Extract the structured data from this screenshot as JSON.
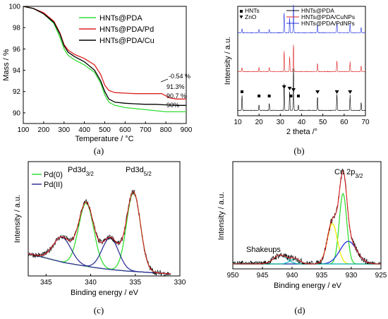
{
  "chart_data": [
    {
      "id": "a",
      "type": "line",
      "panel_label": "(a)",
      "xlabel": "Temperature / °C",
      "ylabel": "Mass / %",
      "xlim": [
        100,
        900
      ],
      "ylim": [
        89,
        100
      ],
      "xticks": [
        100,
        200,
        300,
        400,
        500,
        600,
        700,
        800,
        900
      ],
      "yticks": [
        90,
        92,
        94,
        96,
        98,
        100
      ],
      "legend_position": "top-right",
      "series": [
        {
          "name": "HNTs@PDA",
          "color": "#33dd33",
          "x": [
            100,
            150,
            200,
            250,
            280,
            300,
            320,
            350,
            400,
            450,
            480,
            500,
            520,
            550,
            600,
            650,
            700,
            750,
            800,
            850,
            900
          ],
          "y": [
            100,
            99.8,
            99.3,
            98.4,
            97.1,
            96.0,
            95.4,
            95.0,
            94.5,
            93.8,
            92.8,
            91.7,
            91.0,
            90.7,
            90.5,
            90.4,
            90.3,
            90.2,
            90.1,
            90.1,
            90.1
          ]
        },
        {
          "name": "HNTs@PDA/Pd",
          "color": "#dd2222",
          "x": [
            100,
            150,
            200,
            250,
            280,
            300,
            320,
            350,
            400,
            450,
            480,
            500,
            520,
            550,
            600,
            650,
            700,
            750,
            780,
            800,
            820,
            850,
            900
          ],
          "y": [
            100,
            99.8,
            99.4,
            98.6,
            97.5,
            96.4,
            95.9,
            95.5,
            95.1,
            94.5,
            93.6,
            92.6,
            92.1,
            91.9,
            91.85,
            91.8,
            91.8,
            91.8,
            91.8,
            91.6,
            91.4,
            91.3,
            91.3
          ]
        },
        {
          "name": "HNTs@PDA/Cu",
          "color": "#000000",
          "x": [
            100,
            150,
            200,
            250,
            280,
            300,
            320,
            350,
            400,
            450,
            480,
            500,
            520,
            550,
            600,
            650,
            700,
            750,
            800,
            850,
            900
          ],
          "y": [
            100,
            99.8,
            99.3,
            98.5,
            97.4,
            96.3,
            95.7,
            95.3,
            94.8,
            94.0,
            93.0,
            92.0,
            91.3,
            91.0,
            90.9,
            90.85,
            90.8,
            90.8,
            90.75,
            90.7,
            90.7
          ]
        }
      ],
      "annotations": [
        "-0.54 %",
        "91.3%",
        "90.7 %",
        "90%"
      ]
    },
    {
      "id": "b",
      "type": "line",
      "panel_label": "(b)",
      "xlabel": "2 theta /°",
      "ylabel": "Intensity / a.u.",
      "xlim": [
        10,
        70
      ],
      "xticks": [
        10,
        20,
        30,
        40,
        50,
        60,
        70
      ],
      "legend_position": "top",
      "marker_legend": [
        {
          "symbol": "square",
          "label": "HNTs"
        },
        {
          "symbol": "triangle-down",
          "label": "ZnO"
        }
      ],
      "series": [
        {
          "name": "HNTs@PDA",
          "color": "#000000",
          "offset": 0,
          "peaks": [
            [
              12.0,
              22
            ],
            [
              20.0,
              8
            ],
            [
              24.8,
              10
            ],
            [
              31.8,
              40
            ],
            [
              34.4,
              28
            ],
            [
              36.2,
              62
            ],
            [
              38.5,
              8
            ],
            [
              47.5,
              20
            ],
            [
              56.6,
              24
            ],
            [
              62.8,
              22
            ],
            [
              68.0,
              12
            ]
          ]
        },
        {
          "name": "HNTs@PDA/CuNPs",
          "color": "#dd2222",
          "offset": 1,
          "peaks": [
            [
              12.0,
              6
            ],
            [
              20.0,
              6
            ],
            [
              24.8,
              6
            ],
            [
              31.8,
              30
            ],
            [
              34.4,
              22
            ],
            [
              36.2,
              40
            ],
            [
              47.5,
              12
            ],
            [
              56.6,
              16
            ],
            [
              62.8,
              14
            ],
            [
              68.0,
              8
            ]
          ]
        },
        {
          "name": "HNTs@PDA/PdNPs",
          "color": "#2233dd",
          "offset": 2,
          "peaks": [
            [
              12.0,
              6
            ],
            [
              20.0,
              5
            ],
            [
              24.8,
              5
            ],
            [
              31.8,
              30
            ],
            [
              34.4,
              22
            ],
            [
              36.2,
              42
            ],
            [
              47.5,
              12
            ],
            [
              56.6,
              16
            ],
            [
              62.8,
              14
            ],
            [
              68.0,
              8
            ]
          ]
        }
      ],
      "hnts_peaks": [
        12.0,
        20.0,
        24.8,
        35.0,
        38.5
      ],
      "zno_peaks": [
        31.8,
        34.4,
        36.2,
        47.5,
        56.6,
        62.8
      ]
    },
    {
      "id": "c",
      "type": "line",
      "panel_label": "(c)",
      "xlabel": "Binding energy / eV",
      "ylabel": "Intensity / a.u.",
      "xlim": [
        347,
        330
      ],
      "xticks": [
        345,
        340,
        335,
        330
      ],
      "legend_position": "top-left",
      "peak_labels": [
        {
          "main": "Pd3d",
          "sub": "3/2",
          "x": 340.5
        },
        {
          "main": "Pd3d",
          "sub": "5/2",
          "x": 335.2
        }
      ],
      "series": [
        {
          "name": "Pd(0)",
          "color": "#33dd33",
          "components": [
            [
              340.5,
              0.56,
              1.2
            ],
            [
              335.2,
              0.7,
              1.1
            ]
          ]
        },
        {
          "name": "Pd(II)",
          "color": "#333399",
          "components": [
            [
              343.2,
              0.22,
              1.4
            ],
            [
              337.8,
              0.28,
              1.3
            ]
          ]
        }
      ],
      "background": [
        [
          347,
          0.18
        ],
        [
          343,
          0.1
        ],
        [
          340,
          0.06
        ],
        [
          338,
          0.04
        ],
        [
          336,
          0.025
        ],
        [
          333,
          0.01
        ],
        [
          331,
          0.0
        ]
      ]
    },
    {
      "id": "d",
      "type": "line",
      "panel_label": "(d)",
      "xlabel": "Binding energy / eV",
      "ylabel": "Intensity / a.u.",
      "xlim": [
        950,
        925
      ],
      "xticks": [
        950,
        945,
        940,
        935,
        930,
        925
      ],
      "peak_labels": [
        {
          "main": "Cu 2p",
          "sub": "3/2",
          "x": 931.8
        },
        {
          "main": "Shakeups",
          "sub": "",
          "x": 942.0
        }
      ],
      "series": [
        {
          "name": "Cu 2p3/2 comp 1",
          "color": "#33dd33",
          "components": [
            [
              931.4,
              0.56,
              0.9
            ]
          ]
        },
        {
          "name": "Cu 2p3/2 comp 2",
          "color": "#eeee00",
          "components": [
            [
              933.2,
              0.32,
              1.2
            ]
          ]
        },
        {
          "name": "Cu 2p3/2 comp 3",
          "color": "#2233dd",
          "components": [
            [
              930.5,
              0.18,
              2.0
            ]
          ]
        },
        {
          "name": "Shakeups",
          "color": "#22bbbb",
          "components": [
            [
              942.0,
              0.07,
              1.6
            ],
            [
              939.5,
              0.04,
              1.2
            ]
          ]
        }
      ]
    }
  ]
}
